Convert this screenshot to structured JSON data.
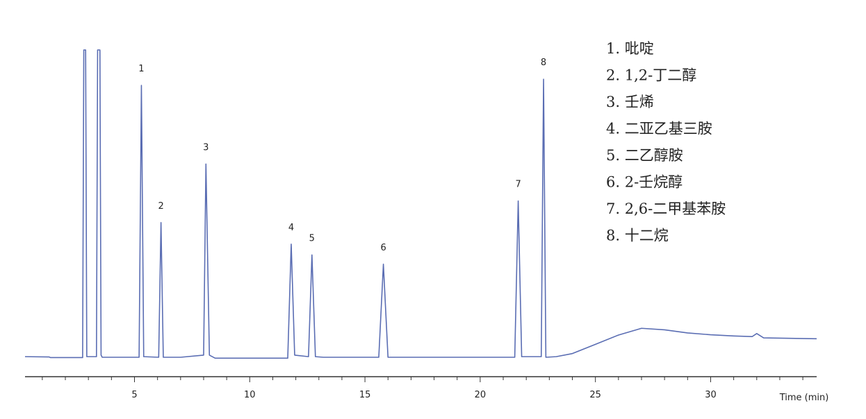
{
  "chart_data": {
    "type": "line",
    "x_label": "Time (min)",
    "xlim": [
      0.25,
      34.6
    ],
    "ylim": [
      -6,
      100
    ],
    "xticks": [
      5,
      10,
      15,
      20,
      25,
      30
    ],
    "minor_xticks": [
      1,
      2,
      3,
      4,
      6,
      7,
      8,
      9,
      11,
      12,
      13,
      14,
      16,
      17,
      18,
      19,
      21,
      22,
      23,
      24,
      26,
      27,
      28,
      29,
      31,
      32,
      33,
      34
    ],
    "series": [
      {
        "color": "#5a6db3",
        "x": [
          0.25,
          1.3,
          1.35,
          2.75,
          2.8,
          2.88,
          2.93,
          3.35,
          3.4,
          3.5,
          3.55,
          3.6,
          5.2,
          5.3,
          5.4,
          6.05,
          6.15,
          6.25,
          7,
          8,
          8.1,
          8.25,
          8.5,
          11.65,
          11.8,
          11.95,
          12.55,
          12.7,
          12.85,
          13.2,
          15.6,
          15.8,
          16.0,
          21.5,
          21.65,
          21.8,
          22.65,
          22.75,
          22.85,
          23.3,
          24,
          25,
          26,
          27,
          28,
          29,
          30,
          31,
          31.8,
          32,
          32.3,
          33,
          34.6
        ],
        "values": [
          0.5,
          0.4,
          0.2,
          0.2,
          100,
          100,
          0.5,
          0.5,
          100,
          100,
          1,
          0.3,
          0.3,
          88.5,
          0.5,
          0.3,
          44,
          0.3,
          0.3,
          1,
          63,
          1,
          0,
          0,
          37,
          1,
          0.5,
          33.5,
          0.5,
          0.3,
          0.3,
          30.5,
          0.3,
          0.3,
          51,
          0.5,
          0.5,
          90.5,
          0.3,
          0.5,
          1.5,
          4.5,
          7.5,
          9.7,
          9.2,
          8.2,
          7.6,
          7.2,
          7.0,
          8,
          6.6,
          6.5,
          6.3
        ]
      }
    ],
    "annotations": [
      {
        "text": "1",
        "x": 5.3,
        "y": 88.5
      },
      {
        "text": "2",
        "x": 6.15,
        "y": 44
      },
      {
        "text": "3",
        "x": 8.1,
        "y": 63
      },
      {
        "text": "4",
        "x": 11.8,
        "y": 37
      },
      {
        "text": "5",
        "x": 12.7,
        "y": 33.5
      },
      {
        "text": "6",
        "x": 15.8,
        "y": 30.5
      },
      {
        "text": "7",
        "x": 21.65,
        "y": 51
      },
      {
        "text": "8",
        "x": 22.75,
        "y": 90.5
      }
    ],
    "legend_items": [
      "1. 吡啶",
      "2. 1,2-丁二醇",
      "3. 壬烯",
      "4. 二亚乙基三胺",
      "5. 二乙醇胺",
      "6. 2-壬烷醇",
      "7. 2,6-二甲基苯胺",
      "8. 十二烷"
    ]
  }
}
